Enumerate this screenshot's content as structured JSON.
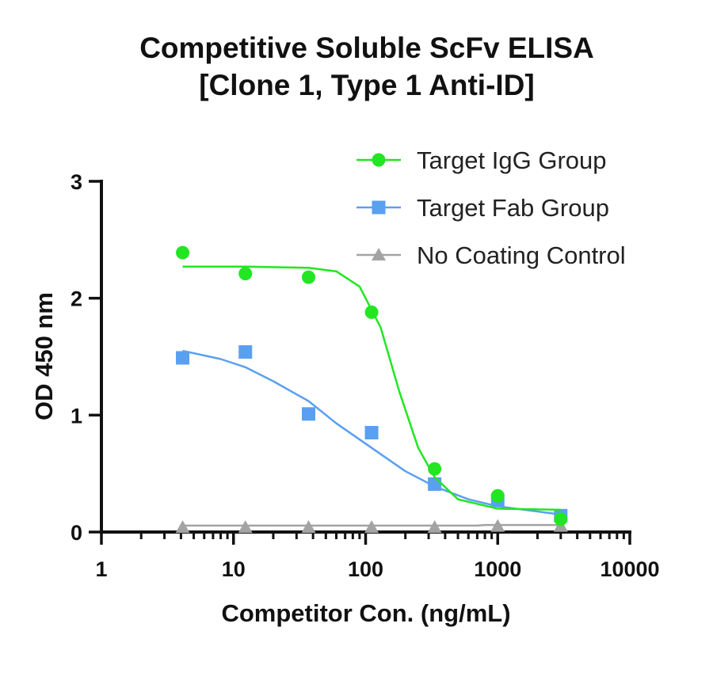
{
  "chart_data": {
    "type": "scatter",
    "title_lines": [
      "Competitive Soluble ScFv ELISA",
      "[Clone 1, Type 1 Anti-ID]"
    ],
    "xlabel": "Competitor Con. (ng/mL)",
    "ylabel": "OD 450 nm",
    "x_scale": "log",
    "xlim": [
      1,
      10000
    ],
    "ylim": [
      0,
      3
    ],
    "x_ticks": [
      "1",
      "10",
      "100",
      "1000",
      "10000"
    ],
    "y_ticks": [
      "0",
      "1",
      "2",
      "3"
    ],
    "grid": false,
    "legend_position": "top-right",
    "series": [
      {
        "name": "Target IgG Group",
        "marker": "circle",
        "color": "#22e622",
        "x": [
          4.12,
          12.3,
          37.0,
          111,
          333,
          1000,
          3000
        ],
        "y": [
          2.39,
          2.21,
          2.18,
          1.88,
          0.54,
          0.31,
          0.11
        ],
        "fit": [
          [
            4.12,
            2.27
          ],
          [
            12.3,
            2.27
          ],
          [
            37.0,
            2.26
          ],
          [
            60,
            2.23
          ],
          [
            90,
            2.1
          ],
          [
            130,
            1.75
          ],
          [
            180,
            1.2
          ],
          [
            250,
            0.72
          ],
          [
            333,
            0.47
          ],
          [
            500,
            0.28
          ],
          [
            1000,
            0.2
          ],
          [
            3000,
            0.19
          ]
        ]
      },
      {
        "name": "Target Fab Group",
        "marker": "square",
        "color": "#5aa0f0",
        "x": [
          4.12,
          12.3,
          37.0,
          111,
          333,
          1000,
          3000
        ],
        "y": [
          1.49,
          1.54,
          1.01,
          0.85,
          0.41,
          0.27,
          0.14
        ],
        "fit": [
          [
            4.12,
            1.55
          ],
          [
            8,
            1.48
          ],
          [
            12.3,
            1.41
          ],
          [
            20,
            1.29
          ],
          [
            37.0,
            1.12
          ],
          [
            60,
            0.93
          ],
          [
            111,
            0.72
          ],
          [
            200,
            0.52
          ],
          [
            333,
            0.39
          ],
          [
            600,
            0.28
          ],
          [
            1000,
            0.22
          ],
          [
            3000,
            0.15
          ]
        ]
      },
      {
        "name": "No Coating Control",
        "marker": "triangle",
        "color": "#a3a3a3",
        "x": [
          4.12,
          12.3,
          37.0,
          111,
          333,
          1000,
          3000
        ],
        "y": [
          0.04,
          0.04,
          0.04,
          0.04,
          0.04,
          0.05,
          0.05
        ],
        "fit": [
          [
            4.12,
            0.055
          ],
          [
            700,
            0.055
          ],
          [
            800,
            0.06
          ],
          [
            3000,
            0.06
          ]
        ]
      }
    ]
  }
}
